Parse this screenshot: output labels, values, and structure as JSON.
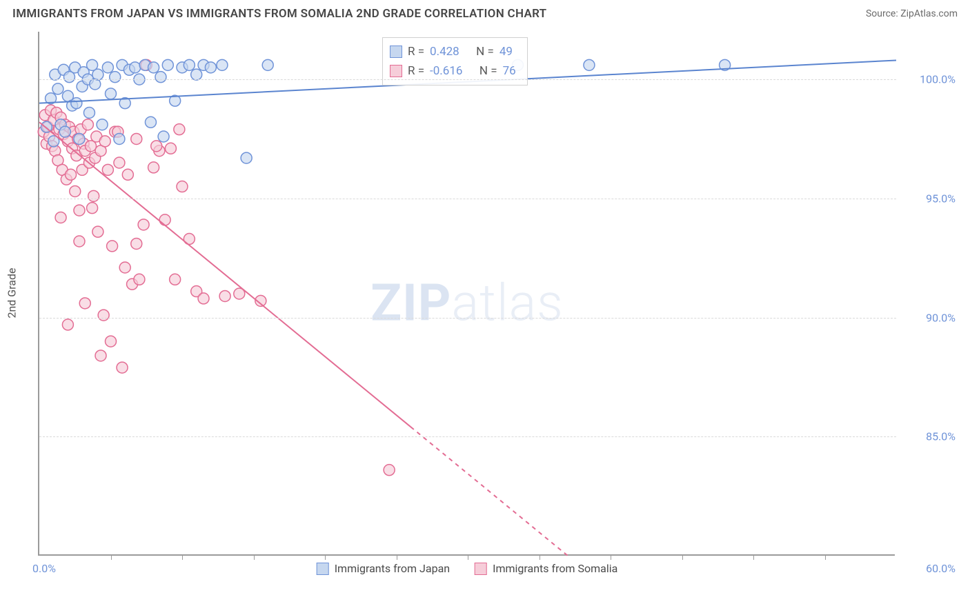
{
  "header": {
    "title": "IMMIGRANTS FROM JAPAN VS IMMIGRANTS FROM SOMALIA 2ND GRADE CORRELATION CHART",
    "source_label": "Source:",
    "source_value": "ZipAtlas.com"
  },
  "watermark": {
    "bold": "ZIP",
    "rest": "atlas"
  },
  "chart": {
    "type": "scatter",
    "y_axis_title": "2nd Grade",
    "xlim": [
      0,
      60
    ],
    "ylim": [
      80,
      102
    ],
    "x_label_min": "0.0%",
    "x_label_max": "60.0%",
    "x_ticks": [
      5,
      10,
      15,
      20,
      25,
      30,
      35,
      40,
      45,
      50,
      55
    ],
    "y_gridlines": [
      {
        "value": 85.0,
        "label": "85.0%"
      },
      {
        "value": 90.0,
        "label": "90.0%"
      },
      {
        "value": 95.0,
        "label": "95.0%"
      },
      {
        "value": 100.0,
        "label": "100.0%"
      }
    ],
    "colors": {
      "series_a_fill": "#c6d7ef",
      "series_a_stroke": "#6f93d8",
      "series_b_fill": "#f6cdd9",
      "series_b_stroke": "#e36c93",
      "series_a_line": "#5a84cf",
      "series_b_line": "#e36c93",
      "grid": "#d9d9d9",
      "axis": "#9a9a9a",
      "label_text": "#6f93d8",
      "title_text": "#464646"
    },
    "marker_radius": 8,
    "marker_stroke_width": 1.5,
    "line_width": 2,
    "series": [
      {
        "key": "japan",
        "label": "Immigrants from Japan",
        "stats": {
          "R": "0.428",
          "N": "49"
        },
        "regression": {
          "x1": 0,
          "y1": 99.0,
          "x2": 60,
          "y2": 100.8,
          "dashed_from_x": null
        },
        "points": [
          [
            0.5,
            98.0
          ],
          [
            0.8,
            99.2
          ],
          [
            1.0,
            97.4
          ],
          [
            1.1,
            100.2
          ],
          [
            1.3,
            99.6
          ],
          [
            1.5,
            98.1
          ],
          [
            1.7,
            100.4
          ],
          [
            1.8,
            97.8
          ],
          [
            2.0,
            99.3
          ],
          [
            2.1,
            100.1
          ],
          [
            2.3,
            98.9
          ],
          [
            2.5,
            100.5
          ],
          [
            2.6,
            99.0
          ],
          [
            2.8,
            97.5
          ],
          [
            3.0,
            99.7
          ],
          [
            3.1,
            100.3
          ],
          [
            3.4,
            100.0
          ],
          [
            3.5,
            98.6
          ],
          [
            3.7,
            100.6
          ],
          [
            3.9,
            99.8
          ],
          [
            4.1,
            100.2
          ],
          [
            4.4,
            98.1
          ],
          [
            4.8,
            100.5
          ],
          [
            5.0,
            99.4
          ],
          [
            5.3,
            100.1
          ],
          [
            5.6,
            97.5
          ],
          [
            5.8,
            100.6
          ],
          [
            6.0,
            99.0
          ],
          [
            6.3,
            100.4
          ],
          [
            6.7,
            100.5
          ],
          [
            7.0,
            100.0
          ],
          [
            7.4,
            100.6
          ],
          [
            7.8,
            98.2
          ],
          [
            8.0,
            100.5
          ],
          [
            8.5,
            100.1
          ],
          [
            9.0,
            100.6
          ],
          [
            9.5,
            99.1
          ],
          [
            10.0,
            100.5
          ],
          [
            10.5,
            100.6
          ],
          [
            11.0,
            100.2
          ],
          [
            11.5,
            100.6
          ],
          [
            12.0,
            100.5
          ],
          [
            12.8,
            100.6
          ],
          [
            14.5,
            96.7
          ],
          [
            16.0,
            100.6
          ],
          [
            33.5,
            100.6
          ],
          [
            38.5,
            100.6
          ],
          [
            48.0,
            100.6
          ],
          [
            8.7,
            97.6
          ]
        ]
      },
      {
        "key": "somalia",
        "label": "Immigrants from Somalia",
        "stats": {
          "R": "-0.616",
          "N": "76"
        },
        "regression": {
          "x1": 0,
          "y1": 98.2,
          "x2": 37,
          "y2": 80.0,
          "dashed_from_x": 26
        },
        "points": [
          [
            0.3,
            97.8
          ],
          [
            0.4,
            98.5
          ],
          [
            0.5,
            97.3
          ],
          [
            0.6,
            98.0
          ],
          [
            0.7,
            97.6
          ],
          [
            0.8,
            98.7
          ],
          [
            0.9,
            97.2
          ],
          [
            1.0,
            98.3
          ],
          [
            1.1,
            97.0
          ],
          [
            1.2,
            98.6
          ],
          [
            1.3,
            96.6
          ],
          [
            1.4,
            97.9
          ],
          [
            1.5,
            98.4
          ],
          [
            1.6,
            96.2
          ],
          [
            1.7,
            97.7
          ],
          [
            1.8,
            98.1
          ],
          [
            1.9,
            95.8
          ],
          [
            2.0,
            97.4
          ],
          [
            2.1,
            98.0
          ],
          [
            2.2,
            96.0
          ],
          [
            2.3,
            97.1
          ],
          [
            2.4,
            97.8
          ],
          [
            2.5,
            95.3
          ],
          [
            2.6,
            96.8
          ],
          [
            2.7,
            97.5
          ],
          [
            2.8,
            94.5
          ],
          [
            2.9,
            97.9
          ],
          [
            3.0,
            96.2
          ],
          [
            3.1,
            97.3
          ],
          [
            3.2,
            97.0
          ],
          [
            3.4,
            98.1
          ],
          [
            3.5,
            96.5
          ],
          [
            3.6,
            97.2
          ],
          [
            3.8,
            95.1
          ],
          [
            3.9,
            96.7
          ],
          [
            4.0,
            97.6
          ],
          [
            4.1,
            93.6
          ],
          [
            4.3,
            97.0
          ],
          [
            4.5,
            90.1
          ],
          [
            4.6,
            97.4
          ],
          [
            4.8,
            96.2
          ],
          [
            5.0,
            89.0
          ],
          [
            5.1,
            93.0
          ],
          [
            5.3,
            97.8
          ],
          [
            5.6,
            96.5
          ],
          [
            5.8,
            87.9
          ],
          [
            6.0,
            92.1
          ],
          [
            6.2,
            96.0
          ],
          [
            6.5,
            91.4
          ],
          [
            6.8,
            97.5
          ],
          [
            7.0,
            91.6
          ],
          [
            7.3,
            93.9
          ],
          [
            7.5,
            100.6
          ],
          [
            8.0,
            96.3
          ],
          [
            8.4,
            97.0
          ],
          [
            8.8,
            94.1
          ],
          [
            9.2,
            97.1
          ],
          [
            9.5,
            91.6
          ],
          [
            10.0,
            95.5
          ],
          [
            10.5,
            93.3
          ],
          [
            11.0,
            91.1
          ],
          [
            11.5,
            90.8
          ],
          [
            13.0,
            90.9
          ],
          [
            2.0,
            89.7
          ],
          [
            3.2,
            90.6
          ],
          [
            4.3,
            88.4
          ],
          [
            1.5,
            94.2
          ],
          [
            2.8,
            93.2
          ],
          [
            3.7,
            94.6
          ],
          [
            5.5,
            97.8
          ],
          [
            6.8,
            93.1
          ],
          [
            8.2,
            97.2
          ],
          [
            9.8,
            97.9
          ],
          [
            14.0,
            91.0
          ],
          [
            15.5,
            90.7
          ],
          [
            24.5,
            83.6
          ]
        ]
      }
    ],
    "legend_bottom": [
      {
        "key": "japan",
        "label": "Immigrants from Japan"
      },
      {
        "key": "somalia",
        "label": "Immigrants from Somalia"
      }
    ],
    "stat_box_labels": {
      "R": "R =",
      "N": "N ="
    }
  }
}
